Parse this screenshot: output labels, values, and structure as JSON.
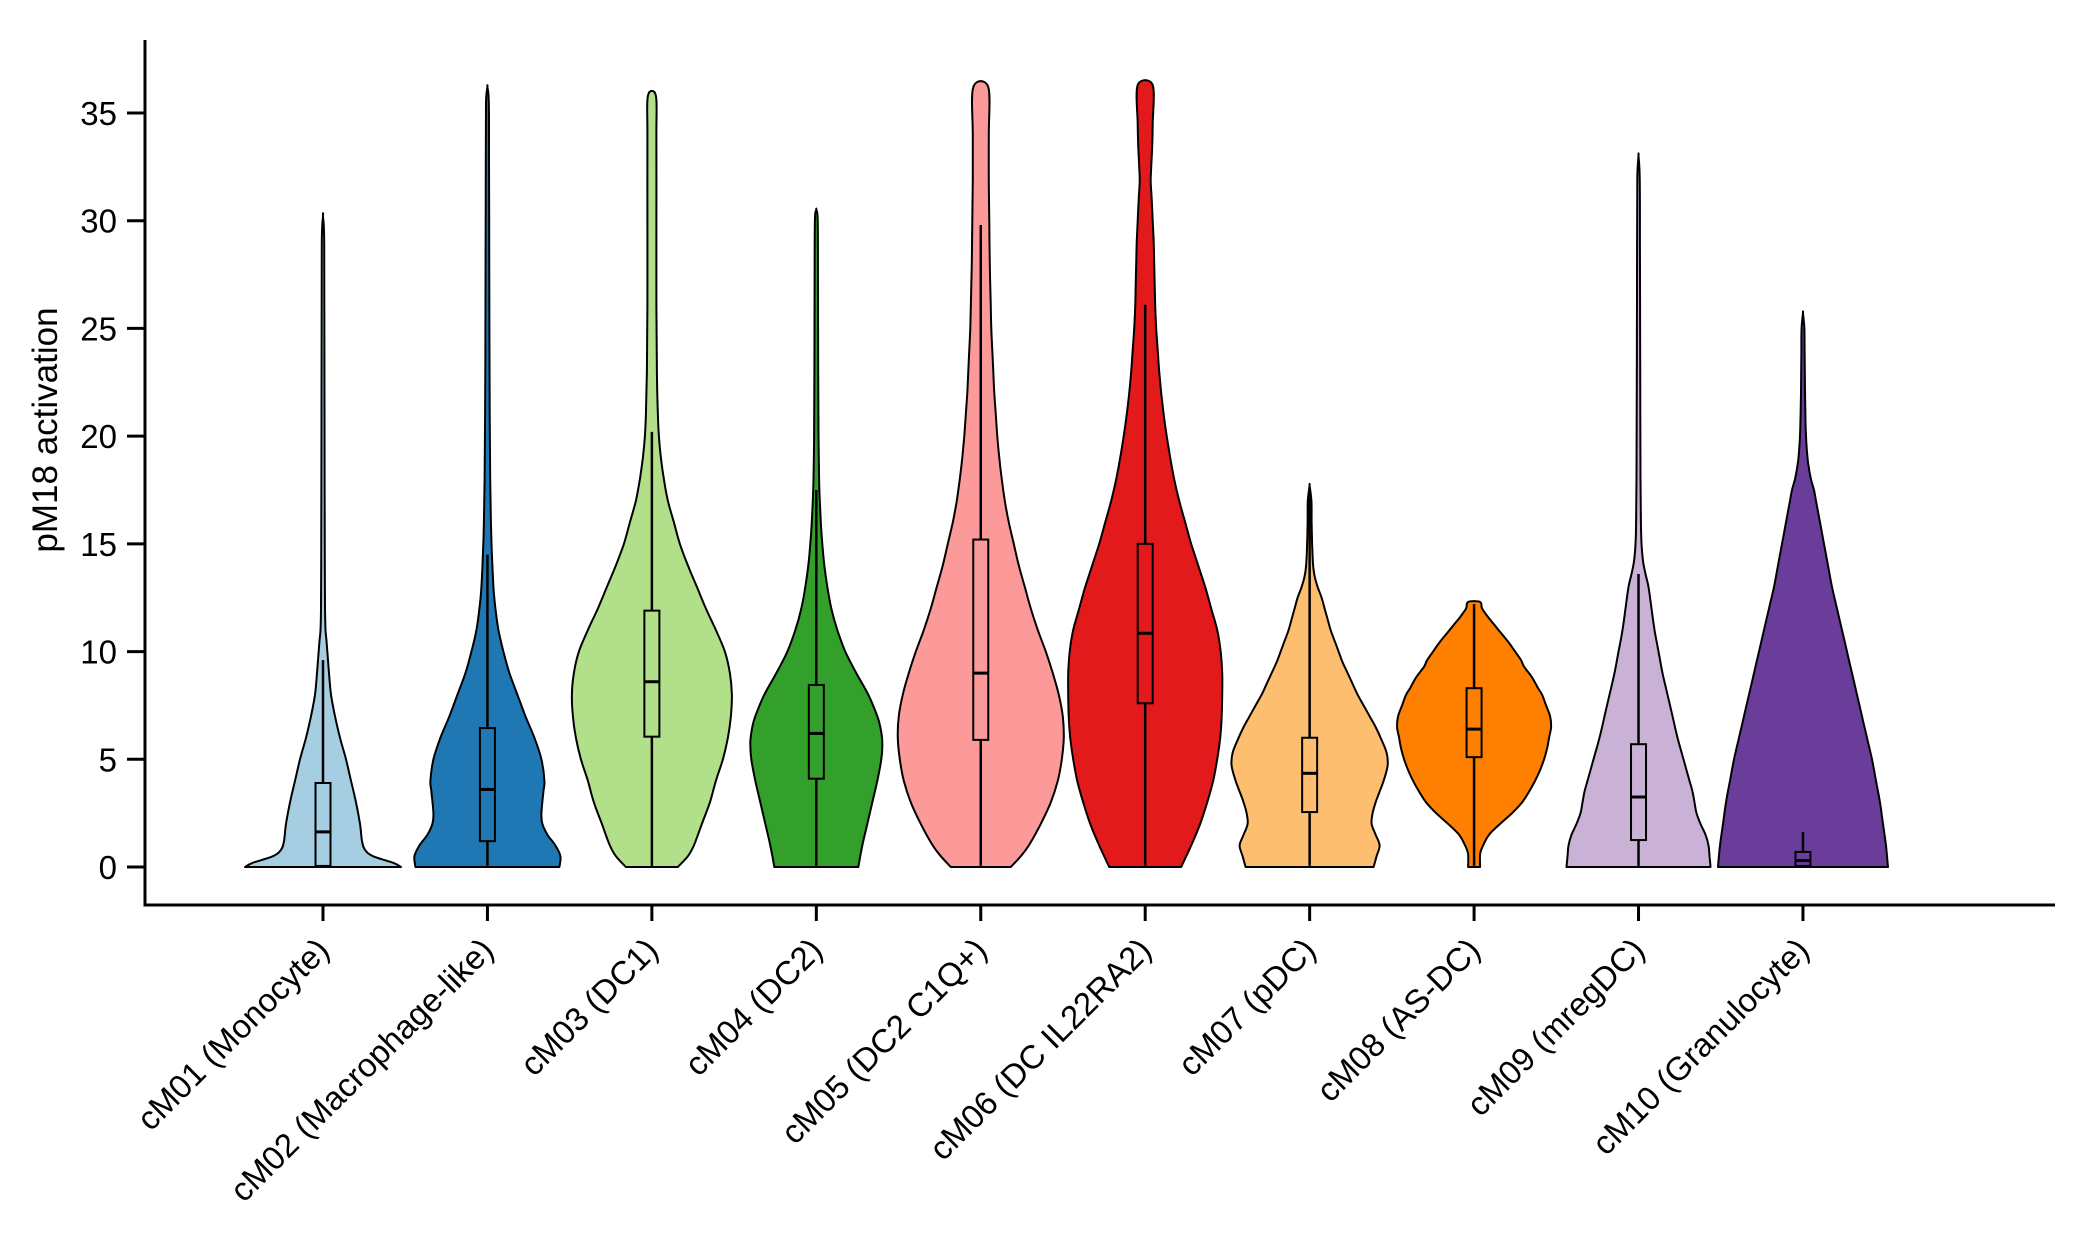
{
  "figure": {
    "background": "#ffffff",
    "frame_color": "#000000"
  },
  "chart_data": {
    "type": "violin",
    "title": "",
    "xlabel": "",
    "ylabel": "pM18 activation",
    "grid": false,
    "legend": "none",
    "y_ticks": [
      0,
      5,
      10,
      15,
      20,
      25,
      30,
      35
    ],
    "ylim": [
      -1.8,
      38.4
    ],
    "categories": [
      "cM01 (Monocyte)",
      "cM02 (Macrophage-like)",
      "cM03 (DC1)",
      "cM04 (DC2)",
      "cM05 (DC2 C1Q+)",
      "cM06 (DC IL22RA2)",
      "cM07 (pDC)",
      "cM08 (AS-DC)",
      "cM09 (mregDC)",
      "cM10 (Granulocyte)"
    ],
    "series": [
      {
        "id": "cM01",
        "label": "cM01 (Monocyte)",
        "color": "#A6CEE3",
        "violin_max": 30.2,
        "whisker_top": 9.6,
        "whisker_bottom": 0.05,
        "q3": 3.9,
        "median": 1.63,
        "q1": 0.05,
        "profile": [
          [
            0,
            78
          ],
          [
            0.2,
            70
          ],
          [
            0.5,
            50
          ],
          [
            0.8,
            42
          ],
          [
            1.2,
            39
          ],
          [
            2,
            37
          ],
          [
            3,
            33
          ],
          [
            4,
            28
          ],
          [
            5,
            23
          ],
          [
            6,
            17
          ],
          [
            7,
            12
          ],
          [
            8,
            8
          ],
          [
            9,
            6
          ],
          [
            9.6,
            5
          ],
          [
            10.5,
            3.5
          ],
          [
            11,
            2.5
          ],
          [
            12,
            2
          ],
          [
            14,
            1.8
          ],
          [
            18,
            1.6
          ],
          [
            24,
            1.4
          ],
          [
            29,
            1.2
          ],
          [
            30.2,
            0
          ]
        ]
      },
      {
        "id": "cM02",
        "label": "cM02 (Macrophage-like)",
        "color": "#1F78B4",
        "violin_max": 36.2,
        "whisker_top": 14.5,
        "whisker_bottom": 0.05,
        "q3": 6.45,
        "median": 3.6,
        "q1": 1.2,
        "profile": [
          [
            0,
            72
          ],
          [
            0.5,
            73
          ],
          [
            1,
            68
          ],
          [
            1.5,
            60
          ],
          [
            2,
            55
          ],
          [
            2.5,
            54
          ],
          [
            3.5,
            56
          ],
          [
            4,
            57
          ],
          [
            5,
            54
          ],
          [
            6,
            47
          ],
          [
            7,
            38
          ],
          [
            8,
            30
          ],
          [
            9,
            22
          ],
          [
            10,
            16
          ],
          [
            11,
            11
          ],
          [
            12,
            8
          ],
          [
            13,
            6
          ],
          [
            14.5,
            4.5
          ],
          [
            16,
            3.5
          ],
          [
            18,
            2.8
          ],
          [
            21,
            2.3
          ],
          [
            25,
            2
          ],
          [
            29,
            1.8
          ],
          [
            33,
            1.6
          ],
          [
            35.5,
            1.4
          ],
          [
            36.2,
            0
          ]
        ]
      },
      {
        "id": "cM03",
        "label": "cM03 (DC1)",
        "color": "#B2DF8A",
        "violin_max": 35.8,
        "whisker_top": 20.2,
        "whisker_bottom": 0.05,
        "q3": 11.9,
        "median": 8.6,
        "q1": 6.05,
        "profile": [
          [
            0,
            26
          ],
          [
            0.5,
            36
          ],
          [
            1,
            42
          ],
          [
            2,
            50
          ],
          [
            3,
            58
          ],
          [
            4,
            64
          ],
          [
            5,
            71
          ],
          [
            6,
            76
          ],
          [
            7,
            79
          ],
          [
            8,
            80
          ],
          [
            9,
            78
          ],
          [
            10,
            73
          ],
          [
            11,
            64
          ],
          [
            12,
            54
          ],
          [
            13,
            45
          ],
          [
            14,
            36
          ],
          [
            15,
            28
          ],
          [
            16,
            22
          ],
          [
            17,
            16
          ],
          [
            18,
            12
          ],
          [
            19,
            9
          ],
          [
            20,
            7
          ],
          [
            21,
            6
          ],
          [
            23,
            5
          ],
          [
            26,
            4.5
          ],
          [
            30,
            4.5
          ],
          [
            34,
            4.5
          ],
          [
            35.8,
            4
          ]
        ]
      },
      {
        "id": "cM04",
        "label": "cM04 (DC2)",
        "color": "#33A02C",
        "violin_max": 30.5,
        "whisker_top": 17.5,
        "whisker_bottom": 0.05,
        "q3": 8.45,
        "median": 6.2,
        "q1": 4.1,
        "profile": [
          [
            0,
            42
          ],
          [
            1,
            46
          ],
          [
            2,
            51
          ],
          [
            3,
            56
          ],
          [
            4,
            61
          ],
          [
            5,
            65
          ],
          [
            5.8,
            66
          ],
          [
            6.5,
            64
          ],
          [
            7,
            61
          ],
          [
            8,
            52
          ],
          [
            9,
            40
          ],
          [
            10,
            29
          ],
          [
            11,
            21
          ],
          [
            12,
            15
          ],
          [
            13,
            11
          ],
          [
            14,
            8
          ],
          [
            15,
            6
          ],
          [
            16,
            4.5
          ],
          [
            17,
            3.5
          ],
          [
            18,
            2.8
          ],
          [
            20,
            2.2
          ],
          [
            23,
            1.9
          ],
          [
            27,
            1.7
          ],
          [
            30,
            1.4
          ],
          [
            30.5,
            0
          ]
        ]
      },
      {
        "id": "cM05",
        "label": "cM05 (DC2 C1Q+)",
        "color": "#FB9A99",
        "violin_max": 36.2,
        "whisker_top": 29.8,
        "whisker_bottom": 0.05,
        "q3": 15.2,
        "median": 9.0,
        "q1": 5.9,
        "profile": [
          [
            0,
            30
          ],
          [
            0.5,
            40
          ],
          [
            1,
            48
          ],
          [
            2,
            60
          ],
          [
            3,
            70
          ],
          [
            4,
            77
          ],
          [
            5,
            81
          ],
          [
            6,
            83
          ],
          [
            7,
            82
          ],
          [
            8,
            78
          ],
          [
            9,
            72
          ],
          [
            10,
            65
          ],
          [
            11,
            57
          ],
          [
            12,
            50
          ],
          [
            13,
            44
          ],
          [
            14,
            38
          ],
          [
            15,
            33
          ],
          [
            16,
            28
          ],
          [
            17,
            24
          ],
          [
            18,
            21
          ],
          [
            19,
            18.5
          ],
          [
            20,
            16.5
          ],
          [
            21,
            15
          ],
          [
            22,
            13.5
          ],
          [
            23,
            12.5
          ],
          [
            24,
            11.5
          ],
          [
            25,
            10.5
          ],
          [
            26,
            10
          ],
          [
            28,
            9
          ],
          [
            30,
            8.5
          ],
          [
            32,
            8
          ],
          [
            34,
            8
          ],
          [
            36.2,
            7.5
          ]
        ]
      },
      {
        "id": "cM06",
        "label": "cM06 (DC IL22RA2)",
        "color": "#E31A1C",
        "violin_max": 36.3,
        "whisker_top": 26.1,
        "whisker_bottom": 0.05,
        "q3": 15.0,
        "median": 10.85,
        "q1": 7.6,
        "profile": [
          [
            0,
            36
          ],
          [
            1,
            46
          ],
          [
            2,
            55
          ],
          [
            3,
            62
          ],
          [
            4,
            68
          ],
          [
            5,
            72
          ],
          [
            6,
            75
          ],
          [
            7,
            76.5
          ],
          [
            8,
            77
          ],
          [
            9,
            77
          ],
          [
            10,
            75.5
          ],
          [
            11,
            72
          ],
          [
            12,
            66
          ],
          [
            13,
            60
          ],
          [
            14,
            53
          ],
          [
            15,
            46
          ],
          [
            16,
            40
          ],
          [
            17,
            34
          ],
          [
            18,
            29
          ],
          [
            19,
            25
          ],
          [
            20,
            21.5
          ],
          [
            21,
            18.5
          ],
          [
            22,
            16
          ],
          [
            23,
            14
          ],
          [
            24,
            12.5
          ],
          [
            25,
            11
          ],
          [
            26,
            10
          ],
          [
            27,
            9.5
          ],
          [
            28,
            9
          ],
          [
            29,
            8.5
          ],
          [
            30,
            7.5
          ],
          [
            31,
            6.5
          ],
          [
            31.8,
            5.5
          ],
          [
            32.5,
            6
          ],
          [
            33.5,
            7
          ],
          [
            34.5,
            7.5
          ],
          [
            36.3,
            7.5
          ]
        ]
      },
      {
        "id": "cM07",
        "label": "cM07 (pDC)",
        "color": "#FDBF6F",
        "violin_max": 17.7,
        "whisker_top": 17.6,
        "whisker_bottom": 0.05,
        "q3": 6.0,
        "median": 4.35,
        "q1": 2.55,
        "profile": [
          [
            0,
            64
          ],
          [
            0.5,
            67
          ],
          [
            1,
            70
          ],
          [
            1.5,
            66
          ],
          [
            2,
            62
          ],
          [
            2.5,
            63
          ],
          [
            3,
            66
          ],
          [
            3.5,
            70
          ],
          [
            4,
            74
          ],
          [
            4.7,
            78
          ],
          [
            5.3,
            77
          ],
          [
            6,
            71
          ],
          [
            6.5,
            66
          ],
          [
            7,
            60
          ],
          [
            7.5,
            54
          ],
          [
            8,
            48
          ],
          [
            8.5,
            43
          ],
          [
            9,
            38
          ],
          [
            9.5,
            33
          ],
          [
            10,
            29
          ],
          [
            10.5,
            25
          ],
          [
            11,
            21
          ],
          [
            11.5,
            18
          ],
          [
            12,
            15
          ],
          [
            12.5,
            12
          ],
          [
            13,
            8
          ],
          [
            13.5,
            5
          ],
          [
            14,
            3.5
          ],
          [
            15,
            2.5
          ],
          [
            16,
            2
          ],
          [
            17,
            1.8
          ],
          [
            17.7,
            0
          ]
        ]
      },
      {
        "id": "cM08",
        "label": "cM08 (AS-DC)",
        "color": "#FF7F00",
        "violin_max": 12.3,
        "whisker_top": 12.2,
        "whisker_bottom": 0.05,
        "q3": 8.3,
        "median": 6.4,
        "q1": 5.1,
        "profile": [
          [
            0,
            6
          ],
          [
            0.6,
            6
          ],
          [
            1,
            9
          ],
          [
            1.5,
            15
          ],
          [
            2,
            26
          ],
          [
            2.5,
            38
          ],
          [
            3,
            48
          ],
          [
            3.5,
            55
          ],
          [
            4,
            61
          ],
          [
            4.5,
            66
          ],
          [
            5,
            70
          ],
          [
            5.5,
            73
          ],
          [
            6,
            75
          ],
          [
            6.5,
            77
          ],
          [
            7,
            76
          ],
          [
            7.5,
            72
          ],
          [
            8,
            68
          ],
          [
            8.3,
            64
          ],
          [
            8.8,
            58
          ],
          [
            9.3,
            50
          ],
          [
            9.6,
            47
          ],
          [
            10,
            41
          ],
          [
            10.4,
            35
          ],
          [
            10.8,
            28
          ],
          [
            11.2,
            21
          ],
          [
            11.6,
            14
          ],
          [
            12,
            8
          ],
          [
            12.3,
            6
          ]
        ]
      },
      {
        "id": "cM09",
        "label": "cM09 (mregDC)",
        "color": "#CAB2D6",
        "violin_max": 33.0,
        "whisker_top": 13.6,
        "whisker_bottom": 0.05,
        "q3": 5.7,
        "median": 3.25,
        "q1": 1.25,
        "profile": [
          [
            0,
            72
          ],
          [
            0.5,
            71
          ],
          [
            1,
            70
          ],
          [
            1.5,
            67
          ],
          [
            2,
            62
          ],
          [
            2.5,
            58
          ],
          [
            3,
            56
          ],
          [
            3.5,
            54
          ],
          [
            4,
            51
          ],
          [
            4.5,
            48
          ],
          [
            5,
            45
          ],
          [
            6,
            39
          ],
          [
            7,
            34
          ],
          [
            8,
            29
          ],
          [
            9,
            24
          ],
          [
            10,
            20
          ],
          [
            11,
            16
          ],
          [
            12,
            13
          ],
          [
            13,
            10
          ],
          [
            13.6,
            7
          ],
          [
            14.2,
            4.5
          ],
          [
            15,
            3
          ],
          [
            16,
            2.4
          ],
          [
            18,
            2
          ],
          [
            21,
            1.8
          ],
          [
            25,
            1.6
          ],
          [
            29,
            1.4
          ],
          [
            32,
            1.2
          ],
          [
            33,
            0
          ]
        ]
      },
      {
        "id": "cM10",
        "label": "cM10 (Granulocyte)",
        "color": "#6A3D9A",
        "violin_max": 25.7,
        "whisker_top": 1.63,
        "whisker_bottom": 0.05,
        "q3": 0.7,
        "median": 0.3,
        "q1": 0.05,
        "profile": [
          [
            0,
            85
          ],
          [
            1,
            83
          ],
          [
            2,
            80
          ],
          [
            3,
            77
          ],
          [
            4,
            73
          ],
          [
            5,
            69
          ],
          [
            6,
            64
          ],
          [
            7,
            59
          ],
          [
            8,
            54
          ],
          [
            9,
            49
          ],
          [
            10,
            44
          ],
          [
            11,
            39
          ],
          [
            12,
            34
          ],
          [
            13,
            29
          ],
          [
            14,
            25
          ],
          [
            15,
            21
          ],
          [
            16,
            17
          ],
          [
            17,
            13
          ],
          [
            17.5,
            11
          ],
          [
            18,
            8
          ],
          [
            18.5,
            6
          ],
          [
            19,
            4.5
          ],
          [
            20,
            3
          ],
          [
            21,
            2.4
          ],
          [
            22,
            2
          ],
          [
            23,
            1.8
          ],
          [
            24,
            1.6
          ],
          [
            25,
            1.4
          ],
          [
            25.7,
            0
          ]
        ]
      }
    ]
  }
}
